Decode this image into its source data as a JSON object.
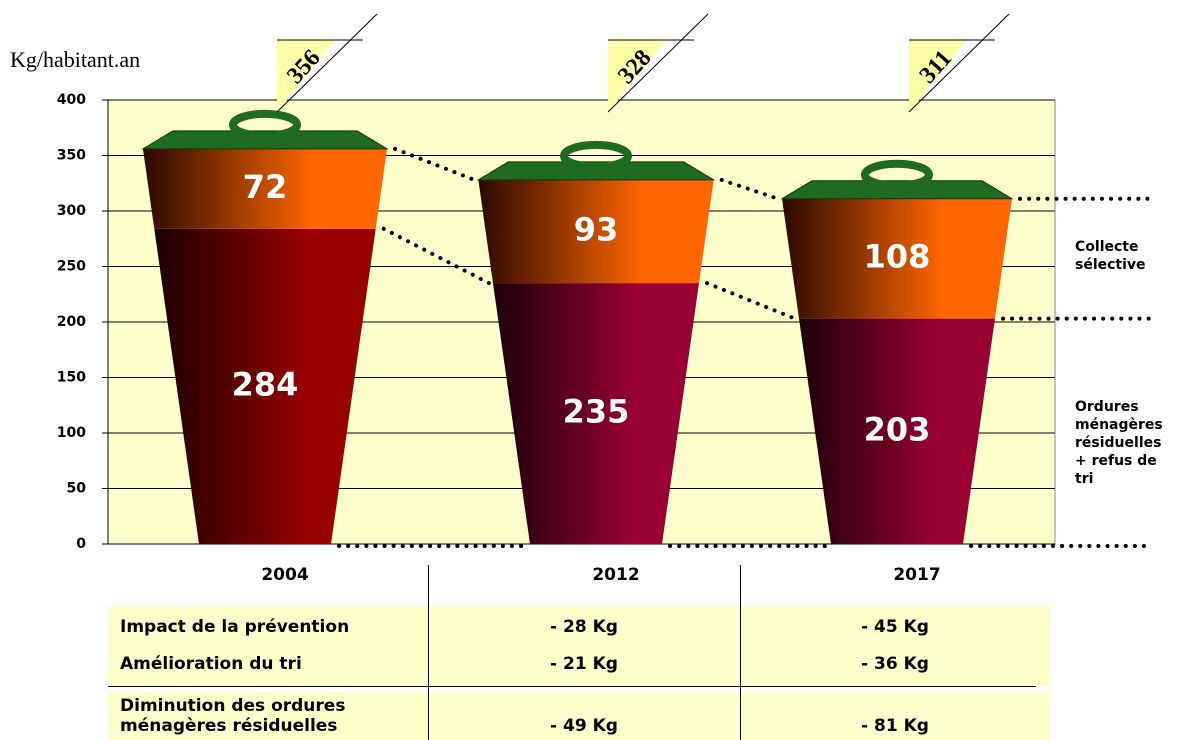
{
  "chart_data": {
    "type": "bar",
    "stacked": true,
    "y_label": "Kg/habitant.an",
    "categories": [
      "2004",
      "2012",
      "2017"
    ],
    "series": [
      {
        "name": "Ordures ménagères résiduelles + refus de tri",
        "color": "#990033",
        "values": [
          284,
          235,
          203
        ]
      },
      {
        "name": "Collecte sélective",
        "color": "#ff6600",
        "values": [
          72,
          93,
          108
        ]
      }
    ],
    "totals": [
      356,
      328,
      311
    ],
    "ylim": [
      0,
      400
    ],
    "yticks": [
      0,
      50,
      100,
      150,
      200,
      250,
      300,
      350,
      400
    ],
    "grid": true
  },
  "table": {
    "rows": [
      [
        "Impact de la prévention",
        "- 28 Kg",
        "- 45 Kg"
      ],
      [
        "Amélioration du tri",
        "- 21 Kg",
        "- 36 Kg"
      ],
      [
        "Diminution des ordures ménagères résiduelles",
        "- 49 Kg",
        "- 81 Kg"
      ]
    ]
  }
}
